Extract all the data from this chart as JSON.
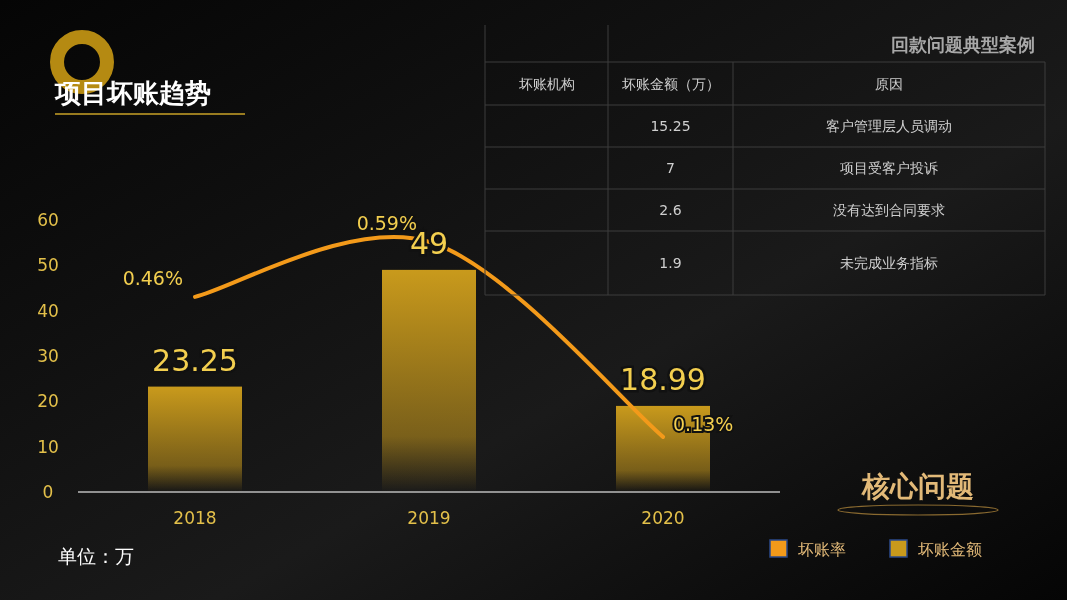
{
  "chart_data": [
    {
      "type": "bar",
      "title": "项目坏账趋势",
      "categories": [
        "2018",
        "2019",
        "2020"
      ],
      "series": [
        {
          "name": "坏账金额",
          "color": "#c99a1c",
          "values": [
            23.25,
            49,
            18.99
          ],
          "value_labels": [
            "23.25",
            "49",
            "18.99"
          ]
        },
        {
          "name": "坏账率",
          "type": "line",
          "axis": "y2",
          "color": "#f39a1a",
          "values": [
            0.46,
            0.59,
            0.13
          ],
          "value_labels": [
            "0.46%",
            "0.59%",
            "0.13%"
          ]
        }
      ],
      "ylim": [
        0,
        60
      ],
      "yticks": [
        0,
        10,
        20,
        30,
        40,
        50,
        60
      ],
      "annotations": [
        "单位：万",
        "核心问题"
      ],
      "legend": "bottom right",
      "grid": false
    },
    {
      "type": "other",
      "title": "回款问题典型案例",
      "categories": [
        "坏账机构",
        "坏账金额（万）",
        "原因"
      ],
      "cell_labels": [
        [
          null,
          "15.25",
          "客户管理层人员调动"
        ],
        [
          null,
          "7",
          "项目受客户投诉"
        ],
        [
          null,
          "2.6",
          "没有达到合同要求"
        ],
        [
          null,
          "1.9",
          "未完成业务指标"
        ]
      ]
    }
  ]
}
